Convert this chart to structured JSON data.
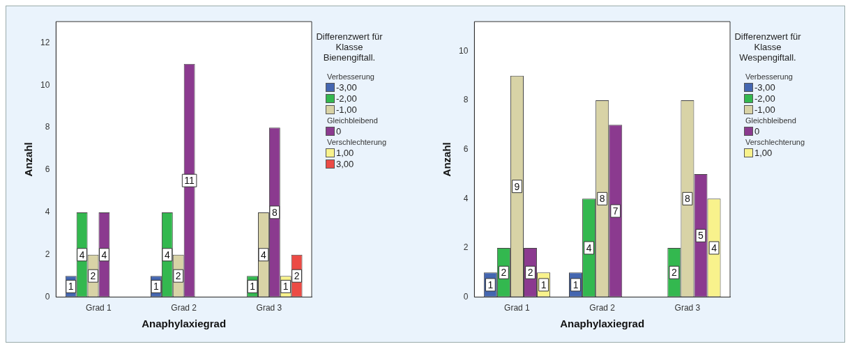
{
  "chart_data": [
    {
      "type": "bar",
      "xlabel": "Anaphylaxiegrad",
      "ylabel": "Anzahl",
      "legend_title": "Differenzwert für Klasse Bienengiftall.",
      "annotations": [
        "Verbesserung",
        "Gleichbleibend",
        "Verschlechterung"
      ],
      "categories": [
        "Grad 1",
        "Grad 2",
        "Grad 3"
      ],
      "series": [
        {
          "name": "-3,00",
          "color": "#4466b0",
          "values": [
            1,
            1,
            null
          ]
        },
        {
          "name": "-2,00",
          "color": "#33b84f",
          "values": [
            4,
            4,
            1
          ]
        },
        {
          "name": "-1,00",
          "color": "#d8d3a6",
          "values": [
            2,
            2,
            4
          ]
        },
        {
          "name": "0",
          "color": "#8b3a8f",
          "values": [
            4,
            11,
            8
          ]
        },
        {
          "name": "1,00",
          "color": "#f8f28c",
          "values": [
            null,
            null,
            1
          ]
        },
        {
          "name": "3,00",
          "color": "#ec4b45",
          "values": [
            null,
            null,
            2
          ]
        }
      ],
      "ylim": [
        0,
        13
      ],
      "yticks": [
        0,
        2,
        4,
        6,
        8,
        10,
        12
      ],
      "grid": false,
      "legend": "right",
      "data_labels": true
    },
    {
      "type": "bar",
      "xlabel": "Anaphylaxiegrad",
      "ylabel": "Anzahl",
      "legend_title": "Differenzwert für Klasse Wespengiftall.",
      "annotations": [
        "Verbesserung",
        "Gleichbleibend",
        "Verschlechterung"
      ],
      "categories": [
        "Grad 1",
        "Grad 2",
        "Grad 3"
      ],
      "series": [
        {
          "name": "-3,00",
          "color": "#4466b0",
          "values": [
            1,
            1,
            null
          ]
        },
        {
          "name": "-2,00",
          "color": "#33b84f",
          "values": [
            2,
            4,
            2
          ]
        },
        {
          "name": "-1,00",
          "color": "#d8d3a6",
          "values": [
            9,
            8,
            8
          ]
        },
        {
          "name": "0",
          "color": "#8b3a8f",
          "values": [
            2,
            7,
            5
          ]
        },
        {
          "name": "1,00",
          "color": "#f8f28c",
          "values": [
            1,
            null,
            4
          ]
        }
      ],
      "ylim": [
        0,
        11.2
      ],
      "yticks": [
        0,
        2,
        4,
        6,
        8,
        10
      ],
      "grid": false,
      "legend": "right",
      "data_labels": true
    }
  ]
}
